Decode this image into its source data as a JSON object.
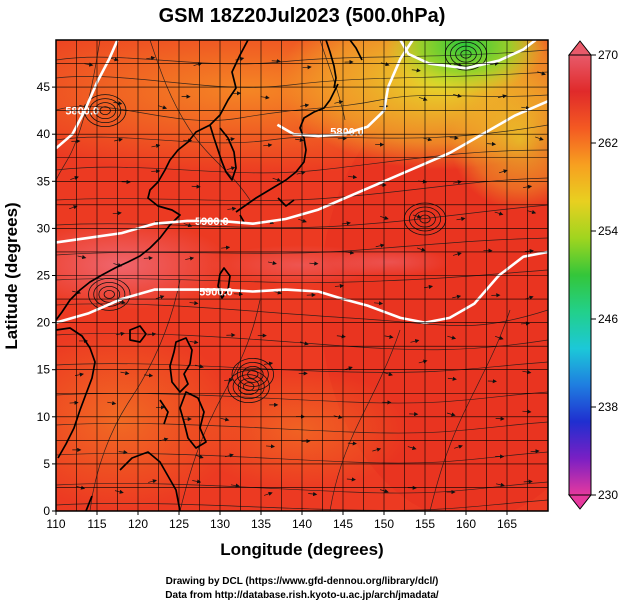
{
  "chart_data": {
    "type": "heatmap",
    "title": "GSM 18Z20Jul2023 (500.0hPa)",
    "xlabel": "Longitude (degrees)",
    "ylabel": "Latitude  (degrees)",
    "xlim": [
      110,
      170
    ],
    "ylim": [
      0,
      50
    ],
    "xticks": [
      "110",
      "115",
      "120",
      "125",
      "130",
      "135",
      "140",
      "145",
      "150",
      "155",
      "160",
      "165"
    ],
    "yticks": [
      "0",
      "5",
      "10",
      "15",
      "20",
      "25",
      "30",
      "35",
      "40",
      "45"
    ],
    "grid": true,
    "colorbar": {
      "range": [
        230,
        270
      ],
      "ticks": [
        "270",
        "262",
        "254",
        "246",
        "238",
        "230"
      ],
      "colors": [
        "#e6399e",
        "#7a1fc4",
        "#1f2fd0",
        "#1f7ee0",
        "#1cc8d8",
        "#22d08a",
        "#34c63a",
        "#9fd51f",
        "#e8d020",
        "#f7a020",
        "#f45a22",
        "#e02a2a",
        "#e85a6a"
      ]
    },
    "contours": [
      {
        "label": "5900.0",
        "points": [
          [
            110,
            20
          ],
          [
            114,
            21
          ],
          [
            118,
            22.5
          ],
          [
            122,
            23.5
          ],
          [
            126,
            23.5
          ],
          [
            130,
            23.5
          ],
          [
            134,
            23.3
          ],
          [
            138,
            23.5
          ],
          [
            142,
            23.3
          ],
          [
            145,
            22.5
          ],
          [
            148,
            21.8
          ],
          [
            152,
            20.5
          ],
          [
            155,
            20
          ],
          [
            158,
            20.5
          ],
          [
            161,
            22
          ],
          [
            164,
            25
          ],
          [
            167,
            27
          ],
          [
            170,
            27.5
          ]
        ]
      },
      {
        "label": "5900.0",
        "points": [
          [
            110,
            28.5
          ],
          [
            114,
            29
          ],
          [
            118,
            29.5
          ],
          [
            122,
            30.5
          ],
          [
            126,
            30.8
          ],
          [
            130,
            30.8
          ],
          [
            134,
            30.5
          ],
          [
            138,
            31
          ],
          [
            142,
            32
          ],
          [
            146,
            33.5
          ],
          [
            150,
            35
          ],
          [
            154,
            36.5
          ],
          [
            158,
            38
          ],
          [
            162,
            40
          ],
          [
            166,
            42
          ],
          [
            170,
            43.5
          ]
        ]
      },
      {
        "label": "5800.0",
        "points": [
          [
            137,
            41
          ],
          [
            139,
            40
          ],
          [
            142,
            39.8
          ],
          [
            145,
            40
          ],
          [
            148,
            40.8
          ],
          [
            150,
            42.5
          ],
          [
            150.5,
            45
          ],
          [
            152,
            48
          ],
          [
            153.5,
            50
          ]
        ]
      },
      {
        "label": "5800.0",
        "points": [
          [
            110,
            38.5
          ],
          [
            112,
            40
          ],
          [
            113.5,
            42.5
          ],
          [
            115,
            45.5
          ],
          [
            116.5,
            48
          ],
          [
            117.5,
            50
          ]
        ]
      },
      {
        "label": "",
        "points": [
          [
            152,
            50
          ],
          [
            153,
            48.5
          ],
          [
            155.5,
            47.5
          ],
          [
            160,
            47
          ],
          [
            164,
            47.8
          ],
          [
            167,
            49
          ],
          [
            168.5,
            50
          ]
        ]
      }
    ],
    "contour_label_points": [
      [
        129.5,
        23.3
      ],
      [
        129,
        30.8
      ],
      [
        145.5,
        40.3
      ],
      [
        113.2,
        42.5
      ]
    ],
    "vortices": [
      [
        116.5,
        23
      ],
      [
        133.5,
        13.2
      ],
      [
        134,
        14.5
      ],
      [
        155,
        31
      ],
      [
        116,
        42.5
      ],
      [
        160,
        48.5
      ]
    ]
  },
  "credits": {
    "line1": "Drawing by DCL (https://www.gfd-dennou.org/library/dcl/)",
    "line2": "Data from http://database.rish.kyoto-u.ac.jp/arch/jmadata/"
  }
}
